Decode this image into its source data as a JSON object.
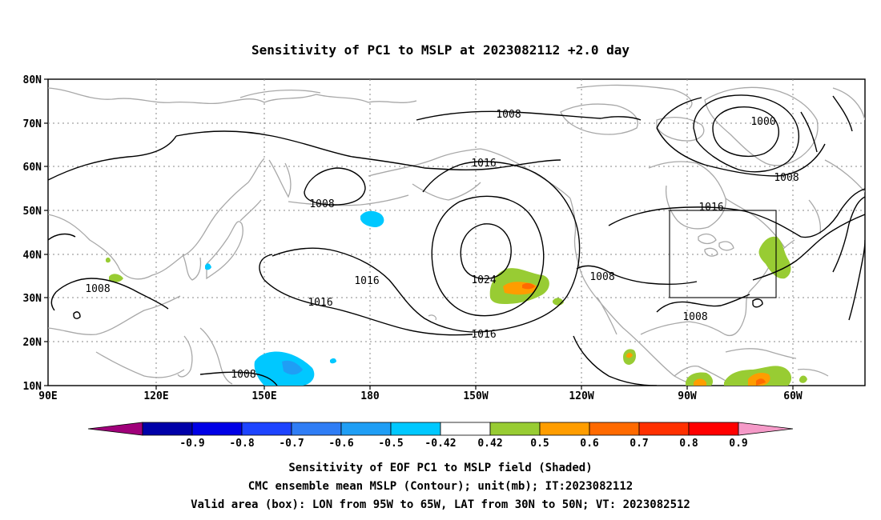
{
  "title": "Sensitivity of PC1 to MSLP at 2023082112 +2.0 day",
  "lat_labels": [
    "80N",
    "70N",
    "60N",
    "50N",
    "40N",
    "30N",
    "20N",
    "10N"
  ],
  "lon_labels": [
    "90E",
    "120E",
    "150E",
    "180",
    "150W",
    "120W",
    "90W",
    "60W"
  ],
  "contour_labels": [
    "1008",
    "1000",
    "1016",
    "1008",
    "1008",
    "1016",
    "1024",
    "1016",
    "1016",
    "1008",
    "1008",
    "1016",
    "1008",
    "1008"
  ],
  "colorbar": {
    "labels": [
      "-0.9",
      "-0.8",
      "-0.7",
      "-0.6",
      "-0.5",
      "-0.42",
      "0.42",
      "0.5",
      "0.6",
      "0.7",
      "0.8",
      "0.9"
    ],
    "colors": [
      "#a0007a",
      "#0000a8",
      "#0000e6",
      "#1d44ff",
      "#2f7df5",
      "#1f9ef5",
      "#00c8ff",
      "#ffffff",
      "#98cc33",
      "#ff9d00",
      "#ff6a00",
      "#ff3000",
      "#ff0000",
      "#f59ac8"
    ]
  },
  "footer": {
    "line1": "Sensitivity of EOF PC1 to MSLP field (Shaded)",
    "line2": "CMC ensemble mean MSLP (Contour); unit(mb); IT:2023082112",
    "line3": "Valid area (box): LON from 95W to 65W, LAT from 30N to 50N; VT: 2023082512"
  },
  "shading_colors": {
    "green": "#98cc33",
    "orange": "#ff9d00",
    "red_orange": "#ff6a00",
    "cyan": "#00c8ff",
    "blue": "#1f9ef5",
    "coast": "#a8a8a8"
  }
}
